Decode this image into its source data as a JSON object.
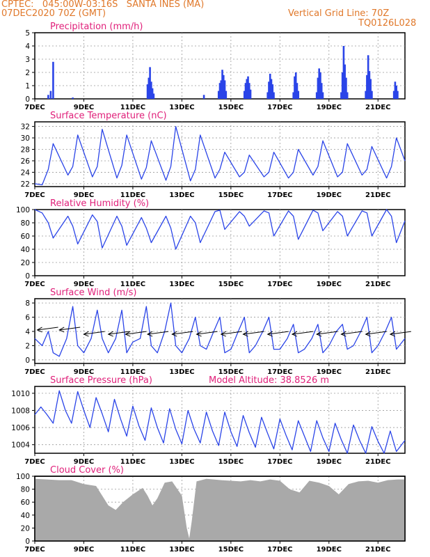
{
  "header": {
    "line1": "CPTEC:   045:00W-03:16S   SANTA INES (MA)",
    "line2": "07DEC2020 70Z (GMT)",
    "grid_note": "Vertical Grid Line: 70Z",
    "code": "TQ0126L028"
  },
  "x_ticks": [
    "7DEC",
    "9DEC",
    "11DEC",
    "13DEC",
    "15DEC",
    "17DEC",
    "19DEC",
    "21DEC"
  ],
  "colors": {
    "header": "#e0782a",
    "title": "#e0207a",
    "series": "#2a44e8",
    "cloud": "#a9a9a9"
  },
  "chart_data": [
    {
      "type": "bar",
      "title": "Precipitation (mm/h)",
      "ylim": [
        0,
        5
      ],
      "yticks": [
        "0",
        "1",
        "2",
        "3",
        "4",
        "5"
      ],
      "x_unit": "days since 7DEC",
      "xlim": [
        0,
        15.1
      ],
      "bars": [
        [
          0.55,
          0.3
        ],
        [
          0.65,
          0.6
        ],
        [
          0.75,
          2.8
        ],
        [
          1.55,
          0.1
        ],
        [
          4.6,
          1.1
        ],
        [
          4.65,
          1.6
        ],
        [
          4.7,
          2.4
        ],
        [
          4.75,
          1.3
        ],
        [
          4.8,
          0.8
        ],
        [
          4.85,
          0.4
        ],
        [
          6.9,
          0.3
        ],
        [
          7.5,
          0.6
        ],
        [
          7.55,
          1.2
        ],
        [
          7.6,
          1.4
        ],
        [
          7.65,
          2.2
        ],
        [
          7.7,
          1.8
        ],
        [
          7.75,
          1.4
        ],
        [
          7.8,
          0.6
        ],
        [
          8.55,
          0.6
        ],
        [
          8.6,
          1.2
        ],
        [
          8.65,
          1.5
        ],
        [
          8.7,
          1.7
        ],
        [
          8.75,
          1.2
        ],
        [
          8.8,
          0.7
        ],
        [
          9.5,
          0.5
        ],
        [
          9.55,
          1.3
        ],
        [
          9.6,
          1.9
        ],
        [
          9.65,
          1.5
        ],
        [
          9.7,
          1.1
        ],
        [
          9.75,
          0.5
        ],
        [
          10.55,
          0.5
        ],
        [
          10.6,
          1.7
        ],
        [
          10.65,
          2.0
        ],
        [
          10.7,
          1.2
        ],
        [
          10.75,
          0.6
        ],
        [
          11.5,
          0.5
        ],
        [
          11.55,
          1.6
        ],
        [
          11.6,
          2.3
        ],
        [
          11.65,
          2.0
        ],
        [
          11.7,
          1.2
        ],
        [
          11.75,
          0.5
        ],
        [
          12.5,
          0.5
        ],
        [
          12.55,
          2.0
        ],
        [
          12.6,
          4.0
        ],
        [
          12.65,
          2.6
        ],
        [
          12.7,
          1.6
        ],
        [
          12.75,
          0.5
        ],
        [
          13.5,
          0.6
        ],
        [
          13.55,
          1.8
        ],
        [
          13.6,
          3.3
        ],
        [
          13.65,
          2.1
        ],
        [
          13.7,
          1.5
        ],
        [
          13.75,
          0.6
        ],
        [
          14.65,
          0.6
        ],
        [
          14.7,
          1.3
        ],
        [
          14.75,
          1.0
        ],
        [
          14.8,
          0.6
        ]
      ]
    },
    {
      "type": "line",
      "title": "Surface Temperature (nC)",
      "ylim": [
        21.5,
        32.8
      ],
      "yticks": [
        "22",
        "24",
        "26",
        "28",
        "30",
        "32"
      ],
      "x_unit": "days since 7DEC",
      "xlim": [
        0,
        15.1
      ],
      "x": [
        0,
        0.3,
        0.55,
        0.75,
        1.35,
        1.55,
        1.75,
        2.35,
        2.55,
        2.75,
        3.35,
        3.55,
        3.75,
        4.35,
        4.55,
        4.75,
        5.35,
        5.55,
        5.75,
        6.35,
        6.55,
        6.75,
        7.35,
        7.55,
        7.75,
        8.35,
        8.55,
        8.75,
        9.35,
        9.55,
        9.75,
        10.35,
        10.55,
        10.75,
        11.35,
        11.55,
        11.75,
        12.35,
        12.55,
        12.75,
        13.35,
        13.55,
        13.75,
        14.35,
        14.55,
        14.75,
        15.1
      ],
      "y": [
        22.0,
        21.8,
        24.5,
        29.0,
        23.5,
        25.0,
        30.5,
        23.2,
        25.0,
        31.5,
        23.0,
        25.2,
        30.5,
        22.8,
        24.8,
        29.5,
        22.6,
        25.0,
        32.0,
        22.5,
        24.5,
        30.5,
        23.0,
        24.5,
        27.5,
        23.2,
        24.0,
        27.0,
        23.2,
        24.0,
        27.5,
        23.0,
        24.0,
        28.0,
        23.5,
        25.0,
        29.5,
        23.2,
        24.0,
        29.0,
        23.5,
        24.5,
        28.5,
        23.0,
        25.0,
        30.0,
        26.0
      ]
    },
    {
      "type": "line",
      "title": "Relative Humidity (%)",
      "ylim": [
        0,
        100
      ],
      "yticks": [
        "0",
        "20",
        "40",
        "60",
        "80",
        "100"
      ],
      "x_unit": "days since 7DEC",
      "xlim": [
        0,
        15.1
      ],
      "x": [
        0,
        0.3,
        0.55,
        0.75,
        1.35,
        1.55,
        1.75,
        2.35,
        2.55,
        2.75,
        3.35,
        3.55,
        3.75,
        4.35,
        4.55,
        4.75,
        5.35,
        5.55,
        5.75,
        6.35,
        6.55,
        6.75,
        7.35,
        7.55,
        7.75,
        8.35,
        8.55,
        8.75,
        9.35,
        9.55,
        9.75,
        10.35,
        10.55,
        10.75,
        11.35,
        11.55,
        11.75,
        12.35,
        12.55,
        12.75,
        13.35,
        13.55,
        13.75,
        14.35,
        14.55,
        14.75,
        15.1
      ],
      "y": [
        100,
        95,
        80,
        57,
        90,
        75,
        48,
        92,
        82,
        42,
        90,
        75,
        46,
        88,
        72,
        50,
        90,
        72,
        40,
        90,
        80,
        50,
        97,
        99,
        70,
        97,
        90,
        75,
        98,
        95,
        60,
        98,
        90,
        55,
        99,
        95,
        68,
        97,
        90,
        60,
        98,
        95,
        60,
        100,
        90,
        50,
        83
      ]
    },
    {
      "type": "line",
      "title": "Surface Wind (m/s)",
      "ylim": [
        -0.5,
        8.6
      ],
      "yticks": [
        "0",
        "2",
        "4",
        "6",
        "8"
      ],
      "x_unit": "days since 7DEC",
      "xlim": [
        0,
        15.1
      ],
      "x": [
        0,
        0.3,
        0.55,
        0.75,
        1.0,
        1.3,
        1.55,
        1.75,
        2.0,
        2.3,
        2.55,
        2.75,
        3.0,
        3.3,
        3.55,
        3.75,
        4.0,
        4.3,
        4.55,
        4.75,
        5.0,
        5.3,
        5.55,
        5.75,
        6.0,
        6.3,
        6.55,
        6.75,
        7.0,
        7.3,
        7.55,
        7.75,
        8.0,
        8.3,
        8.55,
        8.75,
        9.0,
        9.3,
        9.55,
        9.75,
        10.0,
        10.3,
        10.55,
        10.75,
        11.0,
        11.3,
        11.55,
        11.75,
        12.0,
        12.3,
        12.55,
        12.75,
        13.0,
        13.3,
        13.55,
        13.75,
        14.0,
        14.3,
        14.55,
        14.75,
        15.1
      ],
      "y": [
        3,
        2,
        4,
        1,
        0.5,
        3,
        7.5,
        2,
        1,
        3,
        7,
        3,
        1,
        3,
        7,
        1,
        2.5,
        3,
        7.5,
        2,
        1,
        4,
        8,
        2,
        1,
        3,
        6,
        2,
        1.5,
        4,
        6,
        1,
        1.5,
        4,
        6,
        1,
        2,
        4,
        6,
        1.5,
        1.5,
        3,
        5,
        1,
        1.5,
        3,
        5,
        1,
        2,
        4,
        5,
        1.5,
        2,
        4,
        6,
        1,
        2,
        4,
        6,
        1.5,
        3
      ],
      "arrows": [
        [
          0.1,
          4.2
        ],
        [
          1.0,
          4.2
        ],
        [
          2.0,
          3.6
        ],
        [
          3.0,
          3.6
        ],
        [
          3.7,
          3.6
        ],
        [
          4.6,
          3.6
        ],
        [
          5.6,
          3.6
        ],
        [
          6.6,
          3.6
        ],
        [
          7.6,
          3.6
        ],
        [
          8.5,
          3.6
        ],
        [
          9.5,
          3.6
        ],
        [
          10.5,
          3.6
        ],
        [
          11.5,
          3.6
        ],
        [
          12.5,
          3.6
        ],
        [
          13.5,
          3.6
        ],
        [
          14.5,
          3.6
        ]
      ]
    },
    {
      "type": "line",
      "title": "Surface Pressure (hPa)",
      "annotation": "Model Altitude: 38.8526 m",
      "ylim": [
        1003,
        1010.8
      ],
      "yticks": [
        "1004",
        "1006",
        "1008",
        "1010"
      ],
      "x_unit": "days since 7DEC",
      "xlim": [
        0,
        15.1
      ],
      "x": [
        0,
        0.25,
        0.5,
        0.75,
        1.0,
        1.25,
        1.5,
        1.75,
        2.0,
        2.25,
        2.5,
        2.75,
        3.0,
        3.25,
        3.5,
        3.75,
        4.0,
        4.25,
        4.5,
        4.75,
        5.0,
        5.25,
        5.5,
        5.75,
        6.0,
        6.25,
        6.5,
        6.75,
        7.0,
        7.25,
        7.5,
        7.75,
        8.0,
        8.25,
        8.5,
        8.75,
        9.0,
        9.25,
        9.5,
        9.75,
        10.0,
        10.25,
        10.5,
        10.75,
        11.0,
        11.25,
        11.5,
        11.75,
        12.0,
        12.25,
        12.5,
        12.75,
        13.0,
        13.25,
        13.5,
        13.75,
        14.0,
        14.25,
        14.5,
        14.75,
        15.1
      ],
      "y": [
        1007.5,
        1008.4,
        1007.5,
        1006.5,
        1010.3,
        1008,
        1006.5,
        1010.2,
        1008,
        1006,
        1009.5,
        1007.6,
        1005.5,
        1009.3,
        1007,
        1005,
        1008.5,
        1006.2,
        1004.5,
        1008.3,
        1006,
        1004.2,
        1008.2,
        1005.8,
        1004.1,
        1008,
        1005.8,
        1004.2,
        1007.8,
        1005.6,
        1003.9,
        1007.8,
        1005.5,
        1003.8,
        1007.4,
        1005.4,
        1003.7,
        1007.2,
        1005.3,
        1003.5,
        1007,
        1005.1,
        1003.4,
        1006.8,
        1005,
        1003.2,
        1006.8,
        1004.8,
        1003.2,
        1006.5,
        1004.6,
        1003,
        1006.3,
        1004.5,
        1003,
        1006.1,
        1004.4,
        1003,
        1005.6,
        1003.2,
        1004.5
      ]
    },
    {
      "type": "area",
      "title": "Cloud Cover (%)",
      "ylim": [
        0,
        100
      ],
      "yticks": [
        "0",
        "20",
        "40",
        "60",
        "80",
        "100"
      ],
      "x_unit": "days since 7DEC",
      "xlim": [
        0,
        15.1
      ],
      "x": [
        0,
        0.5,
        1.0,
        1.5,
        2.0,
        2.5,
        3.0,
        3.3,
        3.6,
        4.0,
        4.4,
        4.6,
        4.8,
        5.0,
        5.3,
        5.6,
        6.0,
        6.2,
        6.3,
        6.4,
        6.6,
        7.0,
        7.3,
        7.6,
        8.0,
        8.4,
        8.8,
        9.2,
        9.6,
        10.0,
        10.4,
        10.8,
        11.2,
        11.6,
        12.0,
        12.4,
        12.8,
        13.2,
        13.6,
        14.0,
        14.4,
        14.8,
        15.1
      ],
      "y": [
        96,
        95,
        94,
        94,
        88,
        85,
        55,
        48,
        60,
        72,
        82,
        70,
        55,
        66,
        90,
        92,
        70,
        20,
        4,
        30,
        92,
        96,
        95,
        94,
        93,
        92,
        94,
        92,
        95,
        93,
        80,
        75,
        93,
        90,
        85,
        72,
        88,
        92,
        93,
        90,
        94,
        95,
        95
      ]
    }
  ]
}
